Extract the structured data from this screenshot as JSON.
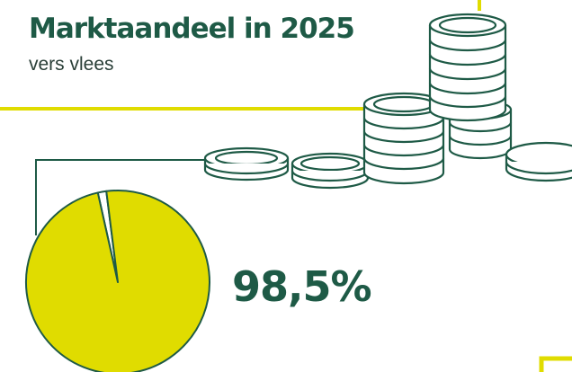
{
  "colors": {
    "accent": "#e0dc00",
    "brand": "#1e5a46",
    "background": "#ffffff"
  },
  "decoration": {
    "icon": "coin-stacks-illustration"
  },
  "chart_data": {
    "type": "pie",
    "title": "Marktaandeel in 2025",
    "subtitle": "vers vlees",
    "slices": [
      {
        "name": "",
        "value": 98.5,
        "color": "#e0dc00"
      },
      {
        "name": "",
        "value": 1.5,
        "color": "#ffffff"
      }
    ],
    "value_label": "98,5%",
    "legend": "none"
  }
}
